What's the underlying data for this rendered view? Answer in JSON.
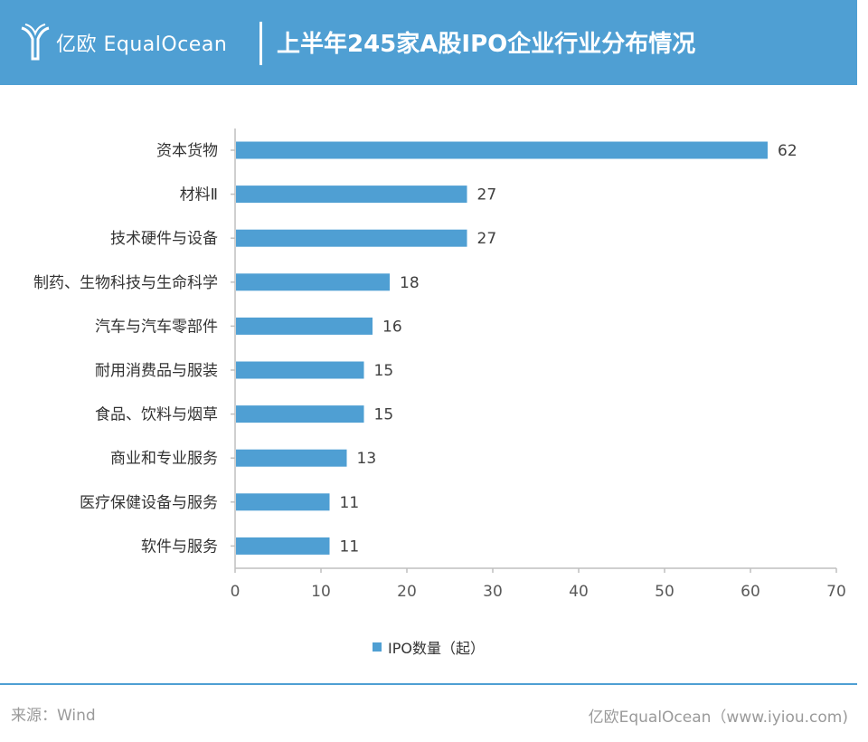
{
  "header": {
    "logo_text": "亿欧 EqualOcean",
    "title": "上半年245家A股IPO企业行业分布情况"
  },
  "colors": {
    "header_bg": "#4f9fd3",
    "bar": "#4f9fd3",
    "axis": "#bfbfbf"
  },
  "chart_data": {
    "type": "bar",
    "orientation": "horizontal",
    "categories": [
      "资本货物",
      "材料Ⅱ",
      "技术硬件与设备",
      "制药、生物科技与生命科学",
      "汽车与汽车零部件",
      "耐用消费品与服装",
      "食品、饮料与烟草",
      "商业和专业服务",
      "医疗保健设备与服务",
      "软件与服务"
    ],
    "series": [
      {
        "name": "IPO数量（起）",
        "values": [
          62,
          27,
          27,
          18,
          16,
          15,
          15,
          13,
          11,
          11
        ]
      }
    ],
    "xlim": [
      0,
      70
    ],
    "xticks": [
      0,
      10,
      20,
      30,
      40,
      50,
      60,
      70
    ],
    "grid": false,
    "legend_position": "bottom"
  },
  "footer": {
    "source": "来源：Wind",
    "credit": "亿欧EqualOcean（www.iyiou.com)"
  }
}
